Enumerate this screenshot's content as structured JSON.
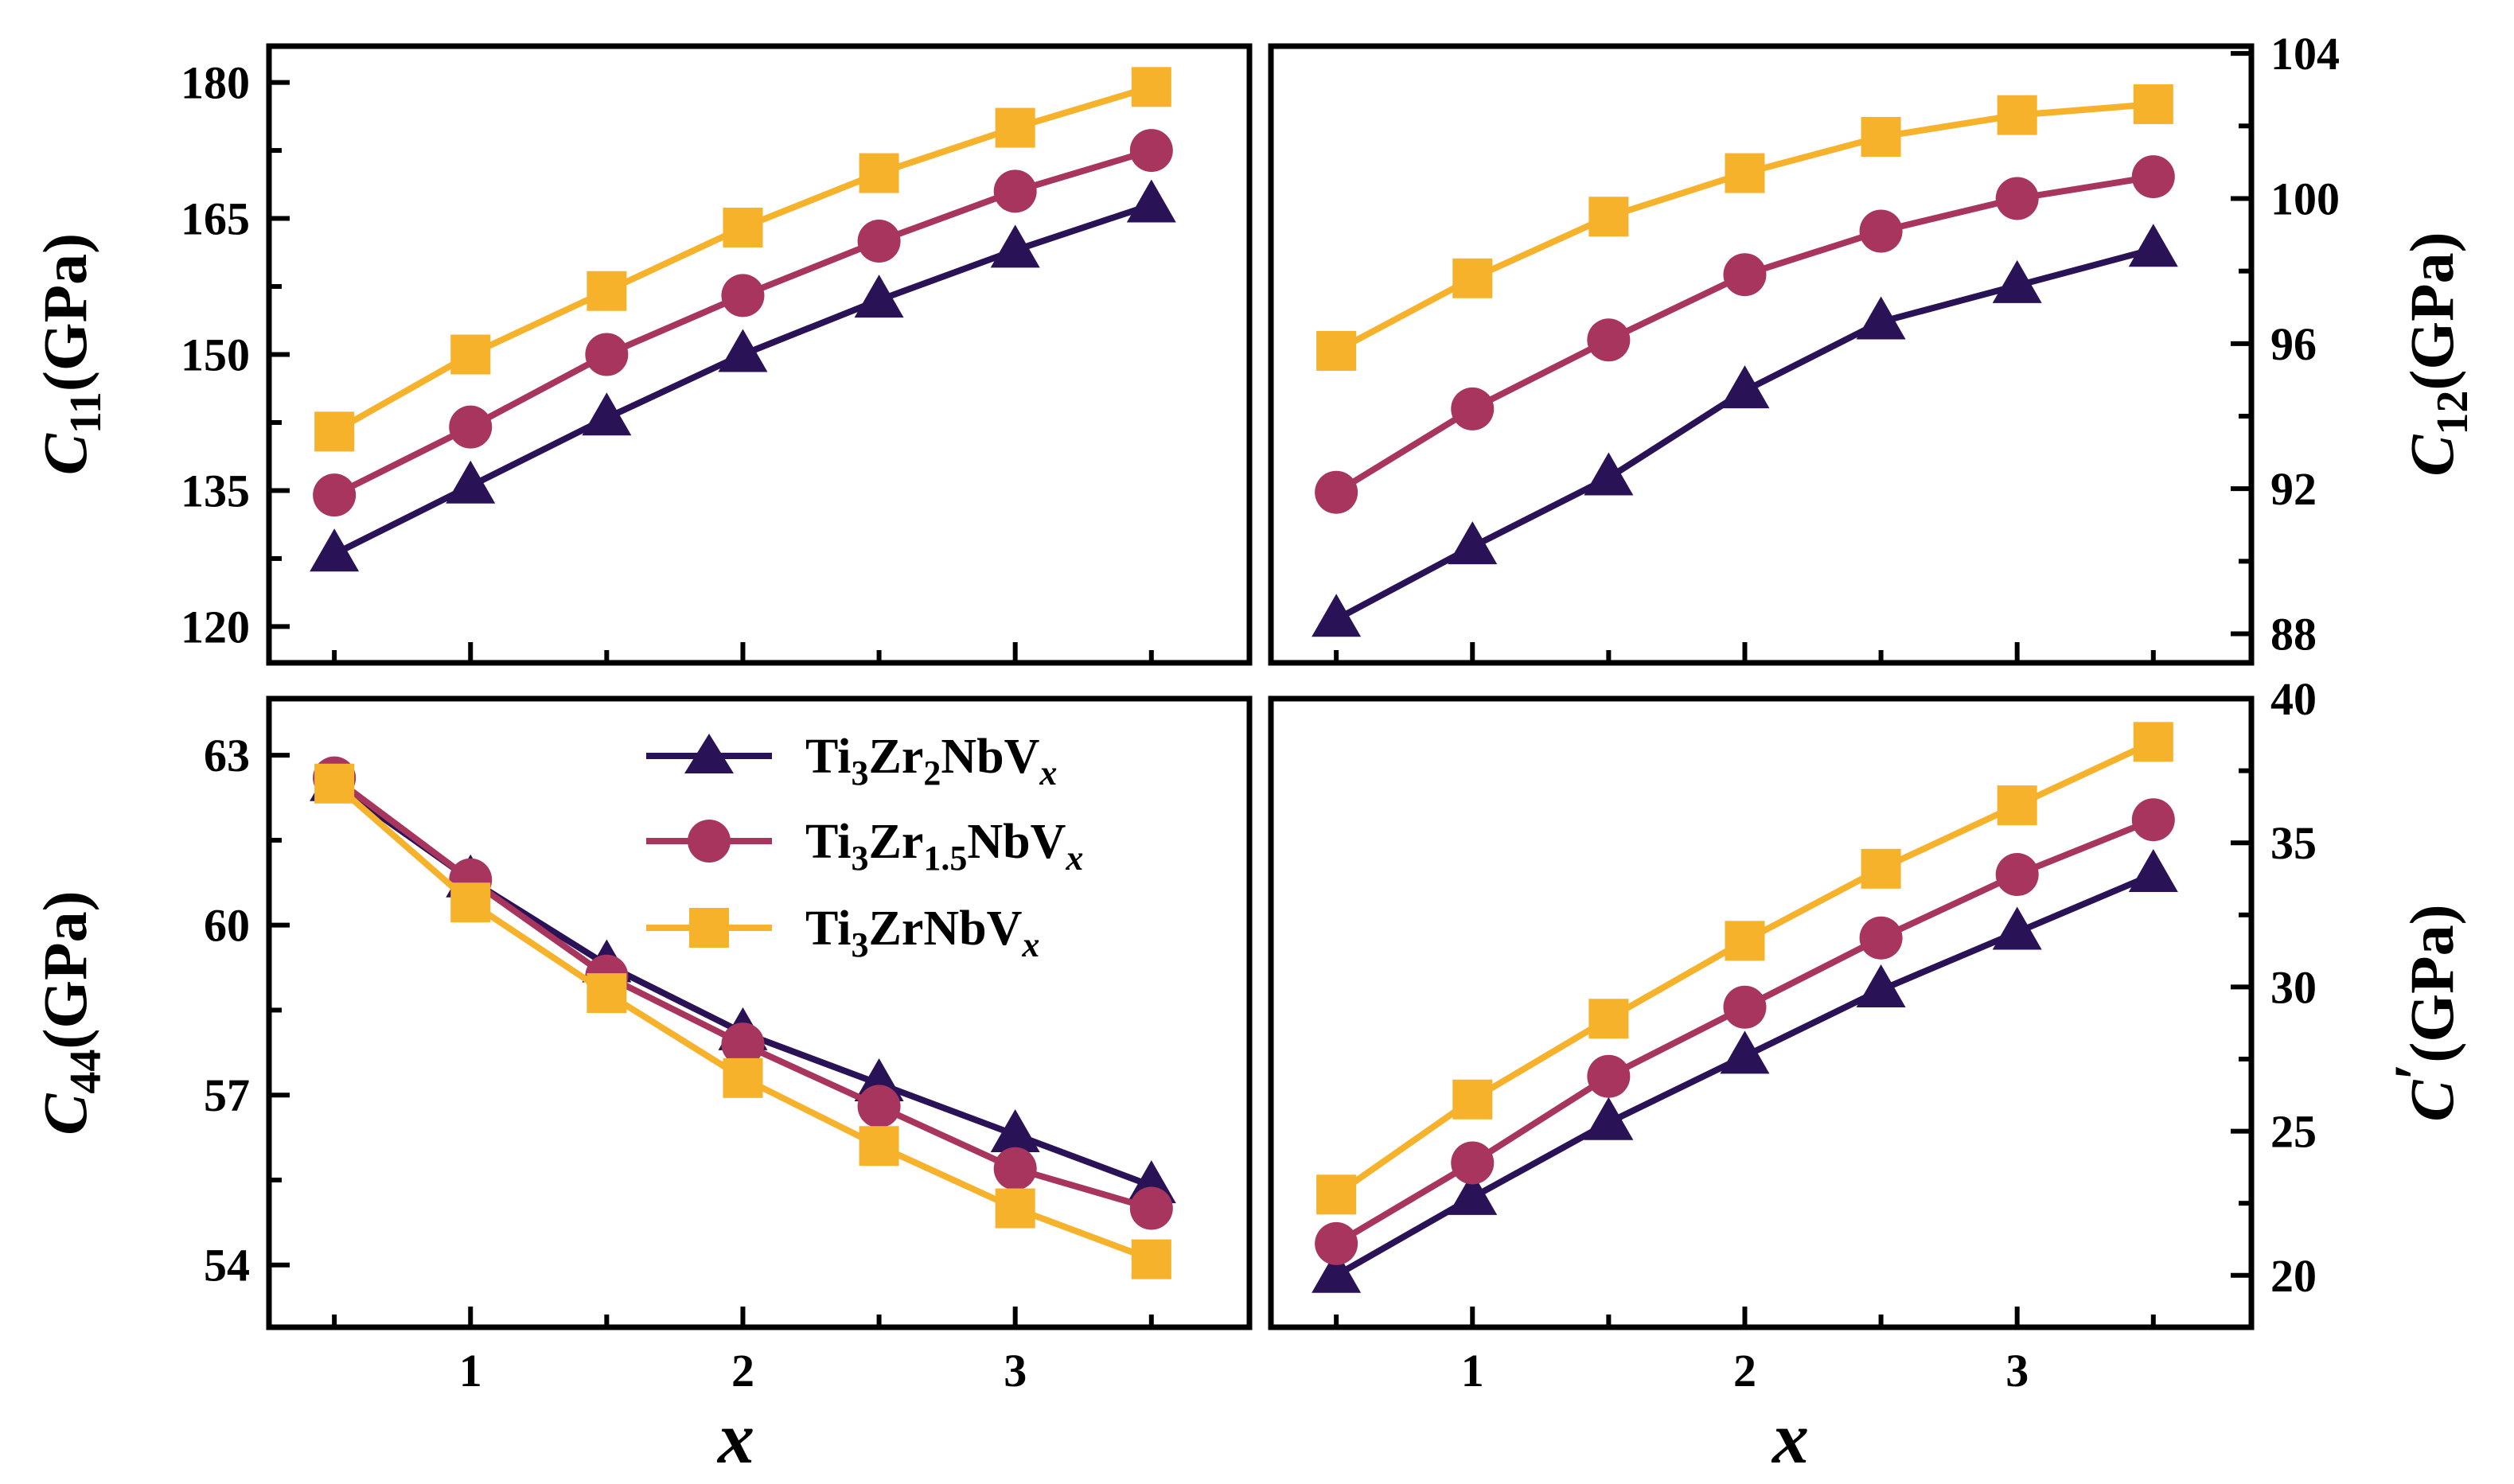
{
  "chart_data": [
    {
      "id": "c11",
      "type": "line",
      "ylabel": "C11(GPa)",
      "ylabel_main": "C",
      "ylabel_sub": "11",
      "ylabel_unit": "(GPa)",
      "ylim": [
        116,
        184
      ],
      "yticks": [
        120,
        135,
        150,
        165,
        180
      ],
      "ytick_labels": [
        "120",
        "135",
        "150",
        "165",
        "180"
      ],
      "x": [
        0.5,
        1,
        1.5,
        2,
        2.5,
        3,
        3.5
      ],
      "series": [
        {
          "name": "Ti3Zr2NbVx",
          "values": [
            128,
            135.5,
            143,
            150,
            156,
            161.5,
            166.5
          ]
        },
        {
          "name": "Ti3Zr1.5NbVx",
          "values": [
            134.5,
            142,
            150,
            156.5,
            162.5,
            168,
            172.5
          ]
        },
        {
          "name": "Ti3ZrNbVx",
          "values": [
            141.5,
            150,
            157,
            164,
            170,
            175,
            179.5
          ]
        }
      ]
    },
    {
      "id": "c12",
      "type": "line",
      "ylabel": "C12(GPa)",
      "ylabel_main": "C",
      "ylabel_sub": "12",
      "ylabel_unit": "(GPa)",
      "ylim": [
        87.2,
        104.2
      ],
      "yticks": [
        88,
        92,
        96,
        100,
        104
      ],
      "ytick_labels": [
        "88",
        "92",
        "96",
        "100",
        "104"
      ],
      "x": [
        0.5,
        1,
        1.5,
        2,
        2.5,
        3,
        3.5
      ],
      "series": [
        {
          "name": "Ti3Zr2NbVx",
          "values": [
            88.4,
            90.4,
            92.3,
            94.7,
            96.6,
            97.6,
            98.6
          ]
        },
        {
          "name": "Ti3Zr1.5NbVx",
          "values": [
            91.9,
            94.2,
            96.1,
            97.9,
            99.1,
            100,
            100.6
          ]
        },
        {
          "name": "Ti3ZrNbVx",
          "values": [
            95.8,
            97.8,
            99.5,
            100.7,
            101.7,
            102.3,
            102.6
          ]
        }
      ]
    },
    {
      "id": "c44",
      "type": "line",
      "ylabel": "C44(GPa)",
      "ylabel_main": "C",
      "ylabel_sub": "44",
      "ylabel_unit": "(GPa)",
      "xlabel": "x",
      "ylim": [
        52.9,
        64.0
      ],
      "yticks": [
        54,
        57,
        60,
        63
      ],
      "ytick_labels": [
        "54",
        "57",
        "60",
        "63"
      ],
      "xticks": [
        1,
        2,
        3
      ],
      "xtick_labels": [
        "1",
        "2",
        "3"
      ],
      "x": [
        0.5,
        1,
        1.5,
        2,
        2.5,
        3,
        3.5
      ],
      "series": [
        {
          "name": "Ti3Zr2NbVx",
          "values": [
            62.5,
            60.8,
            59.3,
            58.1,
            57.2,
            56.3,
            55.4
          ]
        },
        {
          "name": "Ti3Zr1.5NbVx",
          "values": [
            62.6,
            60.8,
            59.1,
            57.9,
            56.8,
            55.7,
            55
          ]
        },
        {
          "name": "Ti3ZrNbVx",
          "values": [
            62.5,
            60.4,
            58.8,
            57.3,
            56.1,
            55,
            54.1
          ]
        }
      ]
    },
    {
      "id": "cprime",
      "type": "line",
      "ylabel": "C′(GPa)",
      "ylabel_main": "C",
      "ylabel_prime": "′",
      "ylabel_unit": "(GPa)",
      "xlabel": "x",
      "ylim": [
        18.2,
        40.0
      ],
      "yticks": [
        20,
        25,
        30,
        35,
        40
      ],
      "ytick_labels": [
        "20",
        "25",
        "30",
        "35",
        "40"
      ],
      "xticks": [
        1,
        2,
        3
      ],
      "xtick_labels": [
        "1",
        "2",
        "3"
      ],
      "x": [
        0.5,
        1,
        1.5,
        2,
        2.5,
        3,
        3.5
      ],
      "series": [
        {
          "name": "Ti3Zr2NbVx",
          "values": [
            20,
            22.7,
            25.3,
            27.6,
            29.9,
            31.9,
            33.9
          ]
        },
        {
          "name": "Ti3Zr1.5NbVx",
          "values": [
            21.1,
            23.9,
            26.9,
            29.3,
            31.7,
            33.9,
            35.8
          ]
        },
        {
          "name": "Ti3ZrNbVx",
          "values": [
            22.8,
            26.1,
            28.9,
            31.6,
            34.1,
            36.3,
            38.5
          ]
        }
      ]
    }
  ],
  "legend": [
    {
      "base": "Ti",
      "s1": "3",
      "mid": "Zr",
      "s2": "2",
      "tail": "NbV",
      "s3": "x",
      "color": "#2a1257",
      "marker": "triangle"
    },
    {
      "base": "Ti",
      "s1": "3",
      "mid": "Zr",
      "s2": "1.5",
      "tail": "NbV",
      "s3": "x",
      "color": "#a8355e",
      "marker": "circle"
    },
    {
      "base": "Ti",
      "s1": "3",
      "mid": "Zr",
      "s2": "",
      "tail": "NbV",
      "s3": "x",
      "color": "#f6b22b",
      "marker": "square"
    }
  ],
  "colors": {
    "series": [
      "#2a1257",
      "#a8355e",
      "#f6b22b"
    ],
    "axis": "#000000"
  }
}
